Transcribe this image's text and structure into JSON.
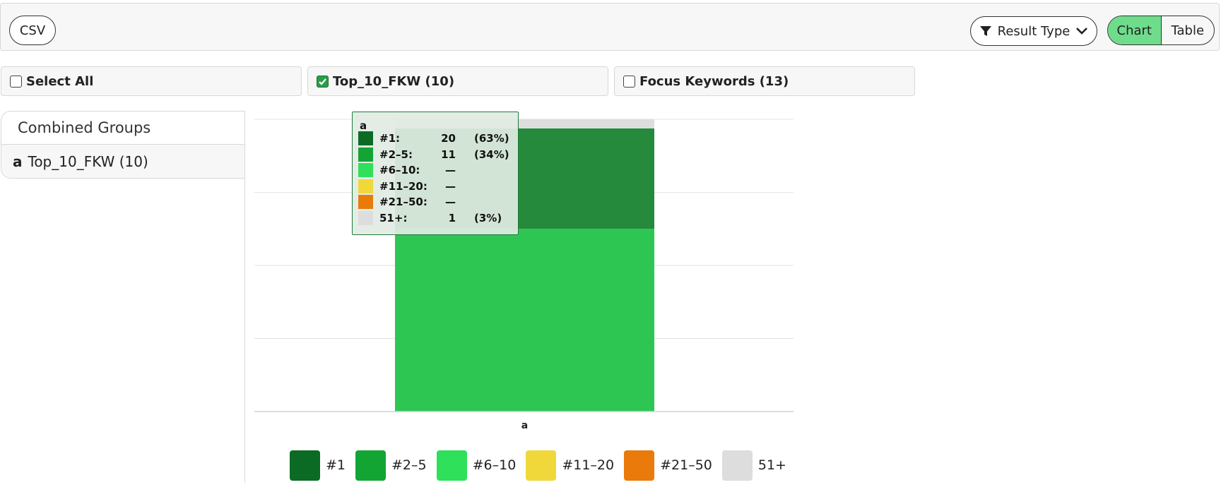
{
  "toolbar": {
    "csv_label": "CSV",
    "result_type_label": "Result Type",
    "view_toggle": {
      "chart_label": "Chart",
      "table_label": "Table",
      "active": "Chart"
    }
  },
  "filters": {
    "select_all_label": "Select All",
    "group1_label": "Top_10_FKW (10)",
    "group2_label": "Focus Keywords (13)"
  },
  "sidebar": {
    "header": "Combined Groups",
    "items": [
      {
        "letter": "a",
        "label": "Top_10_FKW (10)"
      }
    ]
  },
  "tooltip": {
    "title": "a",
    "rows": [
      {
        "label": "#1:",
        "value": "20",
        "pct": "(63%)",
        "color": "#0b6b25"
      },
      {
        "label": "#2–5:",
        "value": "11",
        "pct": "(34%)",
        "color": "#12a534"
      },
      {
        "label": "#6–10:",
        "value": "—",
        "pct": "",
        "color": "#2ee05a"
      },
      {
        "label": "#11–20:",
        "value": "—",
        "pct": "",
        "color": "#f0d83a"
      },
      {
        "label": "#21–50:",
        "value": "—",
        "pct": "",
        "color": "#ea7a0a"
      },
      {
        "label": "51+:",
        "value": "1",
        "pct": "(3%)",
        "color": "#dddddd"
      }
    ]
  },
  "chart_data": {
    "type": "bar",
    "stacked": true,
    "categories": [
      "a"
    ],
    "series": [
      {
        "name": "#1",
        "values": [
          20
        ],
        "color": "#0b6b25"
      },
      {
        "name": "#2–5",
        "values": [
          11
        ],
        "color": "#12a534"
      },
      {
        "name": "#6–10",
        "values": [
          0
        ],
        "color": "#2ee05a"
      },
      {
        "name": "#11–20",
        "values": [
          0
        ],
        "color": "#f0d83a"
      },
      {
        "name": "#21–50",
        "values": [
          0
        ],
        "color": "#ea7a0a"
      },
      {
        "name": "51+",
        "values": [
          1
        ],
        "color": "#dddddd"
      }
    ],
    "display_colors": [
      "#258a3c",
      "#2ec653"
    ],
    "ylim": [
      0,
      32
    ],
    "grid": true,
    "legend": "bottom"
  }
}
